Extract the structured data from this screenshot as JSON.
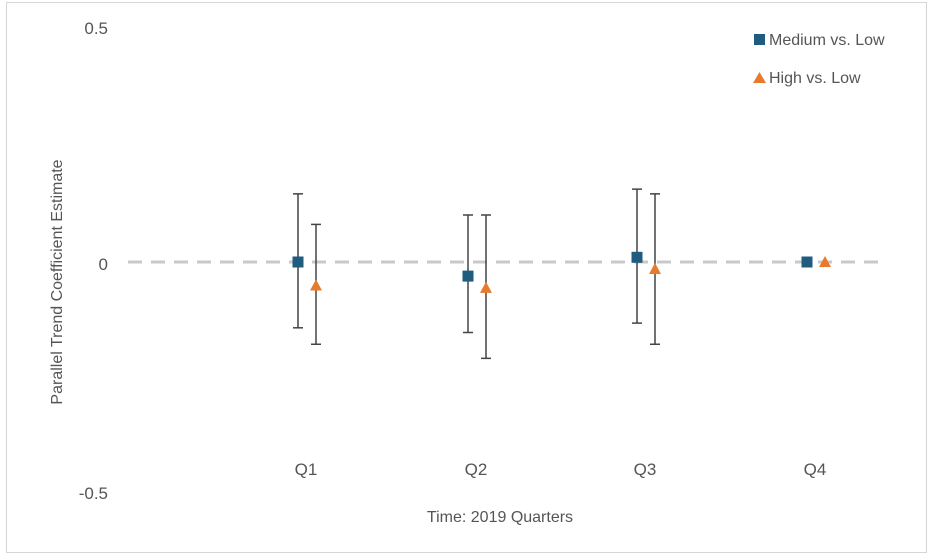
{
  "chart_data": {
    "type": "scatter",
    "title": "",
    "xlabel": "Time: 2019 Quarters",
    "ylabel": "Parallel Trend Coefficient Estimate",
    "categories": [
      "Q1",
      "Q2",
      "Q3",
      "Q4"
    ],
    "ylim": [
      -0.5,
      0.5
    ],
    "yticks": [
      "0.5",
      "0",
      "-0.5"
    ],
    "reference_line": {
      "y": 0,
      "style": "dashed",
      "color": "#c9c9c9"
    },
    "grid": false,
    "legend_position": "top-right",
    "series": [
      {
        "name": "Medium vs. Low",
        "marker": "square",
        "color": "#1f5c7f",
        "values": [
          0.0,
          -0.03,
          0.01,
          0.0
        ],
        "ci_lower": [
          -0.14,
          -0.15,
          -0.13,
          null
        ],
        "ci_upper": [
          0.145,
          0.1,
          0.155,
          null
        ]
      },
      {
        "name": "High vs. Low",
        "marker": "triangle",
        "color": "#e87a2e",
        "values": [
          -0.05,
          -0.055,
          -0.015,
          0.0
        ],
        "ci_lower": [
          -0.175,
          -0.205,
          -0.175,
          null
        ],
        "ci_upper": [
          0.08,
          0.1,
          0.145,
          null
        ]
      }
    ]
  }
}
